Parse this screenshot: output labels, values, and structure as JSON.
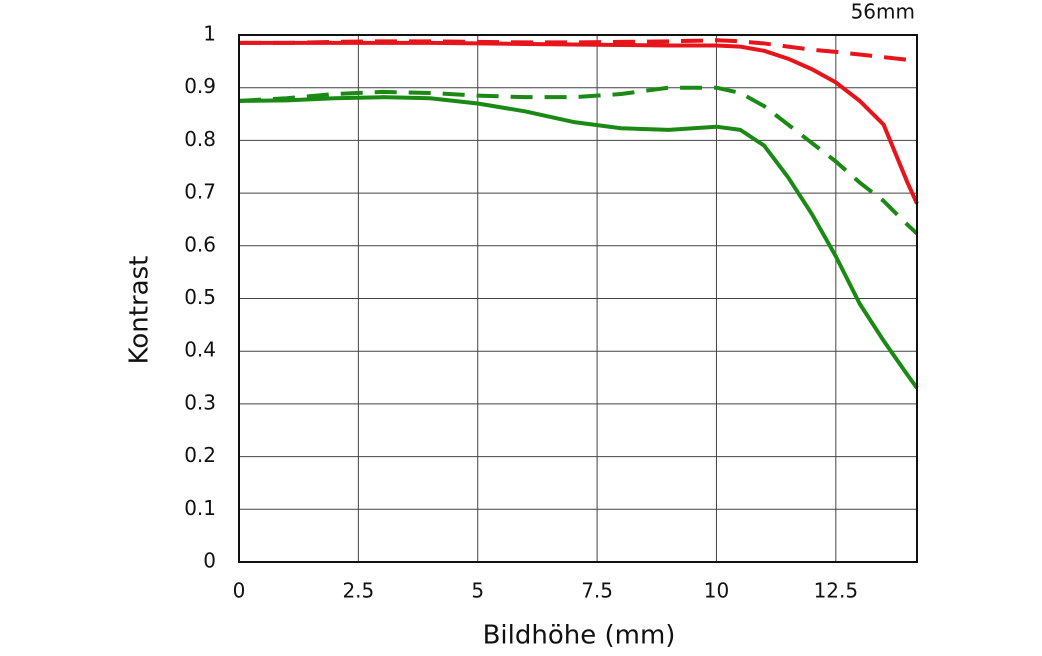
{
  "chart_data": {
    "type": "line",
    "title": "56mm",
    "x_label": "Bildhöhe (mm)",
    "y_label": "Kontrast",
    "x": [
      0,
      1,
      2,
      3,
      4,
      5,
      6,
      7,
      8,
      9,
      10,
      10.5,
      11,
      11.5,
      12,
      12.5,
      13,
      13.5,
      14,
      14.2
    ],
    "series": [
      {
        "color": "#e8141b",
        "style": "solid",
        "values": [
          0.985,
          0.985,
          0.985,
          0.985,
          0.985,
          0.984,
          0.983,
          0.982,
          0.981,
          0.98,
          0.98,
          0.978,
          0.97,
          0.955,
          0.935,
          0.91,
          0.875,
          0.83,
          0.72,
          0.68
        ]
      },
      {
        "color": "#e8141b",
        "style": "dashed",
        "values": [
          0.985,
          0.985,
          0.987,
          0.988,
          0.988,
          0.987,
          0.986,
          0.986,
          0.987,
          0.988,
          0.99,
          0.988,
          0.984,
          0.978,
          0.972,
          0.968,
          0.963,
          0.958,
          0.953,
          0.952
        ]
      },
      {
        "color": "#1a8a14",
        "style": "solid",
        "values": [
          0.875,
          0.876,
          0.88,
          0.882,
          0.88,
          0.87,
          0.855,
          0.835,
          0.823,
          0.82,
          0.826,
          0.82,
          0.79,
          0.73,
          0.66,
          0.58,
          0.49,
          0.42,
          0.355,
          0.33
        ]
      },
      {
        "color": "#1a8a14",
        "style": "dashed",
        "values": [
          0.875,
          0.88,
          0.888,
          0.892,
          0.89,
          0.885,
          0.882,
          0.882,
          0.888,
          0.9,
          0.9,
          0.89,
          0.865,
          0.83,
          0.795,
          0.76,
          0.72,
          0.685,
          0.64,
          0.623
        ]
      }
    ],
    "xlim": [
      0,
      14.2
    ],
    "xticks": [
      0,
      2.5,
      5,
      7.5,
      10,
      12.5
    ],
    "ylim": [
      0,
      1
    ],
    "yticks": [
      0,
      0.1,
      0.2,
      0.3,
      0.4,
      0.5,
      0.6,
      0.7,
      0.8,
      0.9,
      1
    ],
    "grid": true
  }
}
